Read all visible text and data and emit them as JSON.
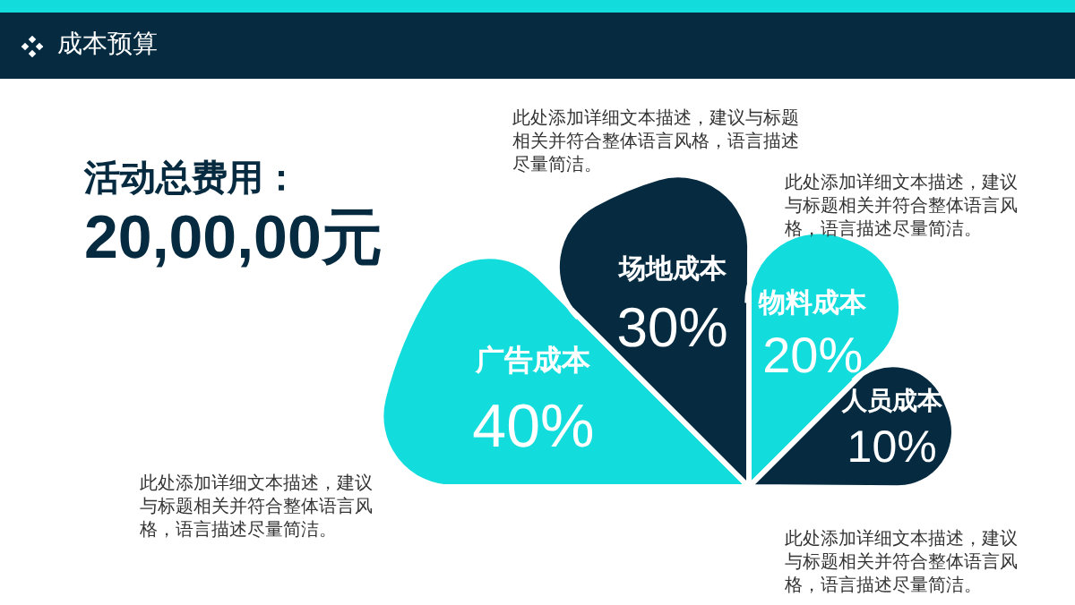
{
  "chart_data": {
    "type": "other",
    "title": "成本预算",
    "subtitle": "活动总费用：",
    "categories": [
      "广告成本",
      "场地成本",
      "物料成本",
      "人员成本"
    ],
    "values": [
      40,
      30,
      20,
      10
    ],
    "value_labels": [
      "40%",
      "30%",
      "20%",
      "10%"
    ],
    "colors": [
      "#13dcdc",
      "#062b40",
      "#13dcdc",
      "#062b40"
    ],
    "annotations": [
      "20,00,00元",
      "此处添加详细文本描述，建议与标题相关并符合整体语言风格，语言描述尽量简洁。",
      "此处添加详细文本描述，建议与标题相关并符合整体语言风格，语言描述尽量简洁。",
      "此处添加详细文本描述，建议与标题相关并符合整体语言风格，语言描述尽量简洁。",
      "此处添加详细文本描述，建议与标题相关并符合整体语言风格，语言描述尽量简洁。"
    ]
  }
}
